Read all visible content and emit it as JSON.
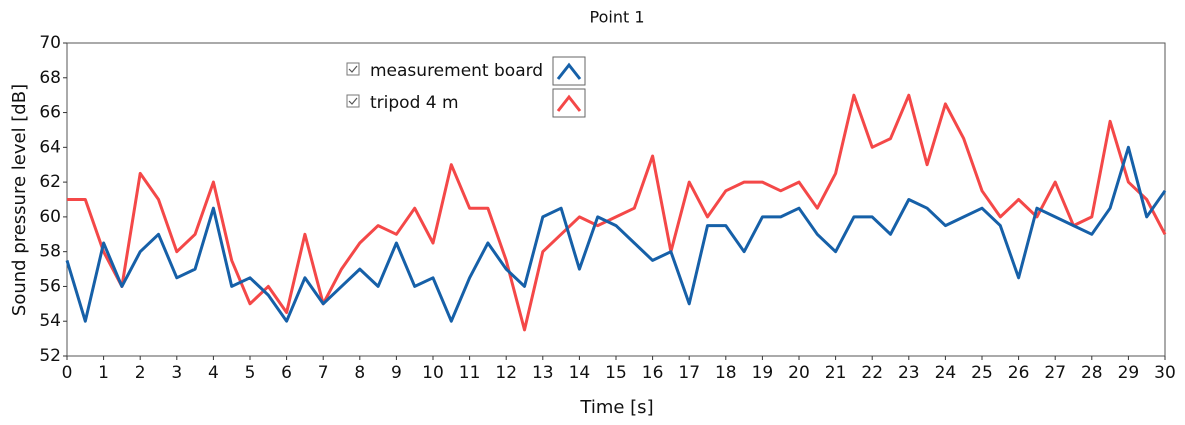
{
  "chart_data": {
    "type": "line",
    "title": "Point 1",
    "x_label": "Time [s]",
    "y_label": "Sound pressure level [dB]",
    "x": [
      0,
      0.5,
      1,
      1.5,
      2,
      2.5,
      3,
      3.5,
      4,
      4.5,
      5,
      5.5,
      6,
      6.5,
      7,
      7.5,
      8,
      8.5,
      9,
      9.5,
      10,
      10.5,
      11,
      11.5,
      12,
      12.5,
      13,
      13.5,
      14,
      14.5,
      15,
      15.5,
      16,
      16.5,
      17,
      17.5,
      18,
      18.5,
      19,
      19.5,
      20,
      20.5,
      21,
      21.5,
      22,
      22.5,
      23,
      23.5,
      24,
      24.5,
      25,
      25.5,
      26,
      26.5,
      27,
      27.5,
      28,
      28.5,
      29,
      29.5,
      30
    ],
    "series": [
      {
        "name": "measurement board",
        "color": "#1660a8",
        "values": [
          57.5,
          54,
          58.5,
          56,
          58,
          59,
          56.5,
          57,
          60.5,
          56,
          56.5,
          55.5,
          54,
          56.5,
          55,
          56,
          57,
          56,
          58.5,
          56,
          56.5,
          54,
          56.5,
          58.5,
          57,
          56,
          60,
          60.5,
          57,
          60,
          59.5,
          58.5,
          57.5,
          58,
          55,
          59.5,
          59.5,
          58,
          60,
          60,
          60.5,
          59,
          58,
          60,
          60,
          59,
          61,
          60.5,
          59.5,
          60,
          60.5,
          59.5,
          56.5,
          60.5,
          60,
          59.5,
          59,
          60.5,
          64,
          60,
          61.5
        ]
      },
      {
        "name": "tripod 4 m",
        "color": "#f44848",
        "values": [
          61,
          61,
          58,
          56,
          62.5,
          61,
          58,
          59,
          62,
          57.5,
          55,
          56,
          54.5,
          59,
          55,
          57,
          58.5,
          59.5,
          59,
          60.5,
          58.5,
          63,
          60.5,
          60.5,
          57.5,
          53.5,
          58,
          59,
          60,
          59.5,
          60,
          60.5,
          63.5,
          58,
          62,
          60,
          61.5,
          62,
          62,
          61.5,
          62,
          60.5,
          62.5,
          67,
          64,
          64.5,
          67,
          63,
          66.5,
          64.5,
          61.5,
          60,
          61,
          60,
          62,
          59.5,
          60,
          65.5,
          62,
          61,
          59
        ]
      }
    ],
    "xlim": [
      0,
      30
    ],
    "ylim": [
      52,
      70
    ],
    "xticks": [
      0,
      1,
      2,
      3,
      4,
      5,
      6,
      7,
      8,
      9,
      10,
      11,
      12,
      13,
      14,
      15,
      16,
      17,
      18,
      19,
      20,
      21,
      22,
      23,
      24,
      25,
      26,
      27,
      28,
      29,
      30
    ],
    "yticks": [
      52,
      54,
      56,
      58,
      60,
      62,
      64,
      66,
      68,
      70
    ]
  }
}
